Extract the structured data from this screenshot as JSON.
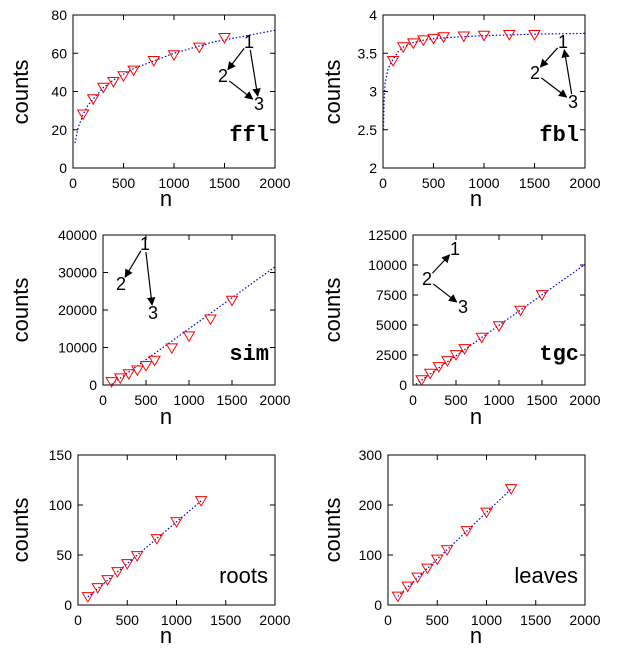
{
  "figure": {
    "background": "#ffffff"
  },
  "style": {
    "marker_color": "#ff0000",
    "fit_color": "#0000cc",
    "axis_color": "#000000"
  },
  "chart_data": [
    {
      "id": "ffl",
      "type": "scatter",
      "panel_label": "ffl",
      "panel_label_font": "mono",
      "xlabel": "n",
      "ylabel": "counts",
      "xlim": [
        0,
        2000
      ],
      "ylim": [
        0,
        80
      ],
      "xticks": [
        0,
        500,
        1000,
        1500,
        2000
      ],
      "yticks": [
        0,
        20,
        40,
        60,
        80
      ],
      "marker": "triangle-down",
      "x": [
        100,
        200,
        300,
        400,
        500,
        600,
        800,
        1000,
        1250,
        1500
      ],
      "y": [
        28,
        36,
        42,
        45,
        48,
        51,
        56,
        59,
        63,
        68
      ],
      "fit": {
        "style": "dotted",
        "x": [
          20,
          50,
          100,
          150,
          200,
          300,
          400,
          500,
          600,
          800,
          1000,
          1200,
          1400,
          1600,
          1800,
          2000
        ],
        "y": [
          13,
          21,
          28,
          33,
          36,
          42,
          46,
          49,
          52,
          56,
          60,
          63,
          66,
          68,
          70,
          72
        ]
      },
      "motif": {
        "labels": [
          "1",
          "2",
          "3"
        ],
        "edges": [
          "1→2",
          "1→3",
          "2→3"
        ]
      }
    },
    {
      "id": "fbl",
      "type": "scatter",
      "panel_label": "fbl",
      "panel_label_font": "mono",
      "xlabel": "n",
      "ylabel": "counts",
      "xlim": [
        0,
        2000
      ],
      "ylim": [
        2,
        4
      ],
      "xticks": [
        0,
        500,
        1000,
        1500,
        2000
      ],
      "yticks": [
        2,
        2.5,
        3,
        3.5,
        4
      ],
      "marker": "triangle-down",
      "x": [
        100,
        200,
        300,
        400,
        500,
        600,
        800,
        1000,
        1250,
        1500
      ],
      "y": [
        3.4,
        3.58,
        3.63,
        3.67,
        3.69,
        3.71,
        3.72,
        3.73,
        3.74,
        3.74
      ],
      "fit": {
        "style": "dotted",
        "x": [
          5,
          10,
          20,
          50,
          100,
          150,
          200,
          300,
          400,
          500,
          700,
          1000,
          1500,
          2000
        ],
        "y": [
          2.5,
          2.85,
          3.1,
          3.3,
          3.42,
          3.52,
          3.58,
          3.64,
          3.67,
          3.69,
          3.71,
          3.73,
          3.75,
          3.76
        ]
      },
      "motif": {
        "labels": [
          "1",
          "2",
          "3"
        ],
        "edges": [
          "1→2",
          "2→3",
          "3→1"
        ]
      }
    },
    {
      "id": "sim",
      "type": "scatter",
      "panel_label": "sim",
      "panel_label_font": "mono",
      "xlabel": "n",
      "ylabel": "counts",
      "xlim": [
        0,
        2000
      ],
      "ylim": [
        0,
        40000
      ],
      "xticks": [
        0,
        500,
        1000,
        1500,
        2000
      ],
      "yticks": [
        0,
        10000,
        20000,
        30000,
        40000
      ],
      "marker": "triangle-down",
      "x": [
        100,
        200,
        300,
        400,
        500,
        600,
        800,
        1000,
        1250,
        1500
      ],
      "y": [
        800,
        1800,
        2900,
        3900,
        5100,
        6500,
        9800,
        13000,
        17500,
        22500
      ],
      "fit": {
        "style": "dotted",
        "x": [
          0,
          2000
        ],
        "y": [
          -1500,
          31500
        ]
      },
      "motif": {
        "labels": [
          "1",
          "2",
          "3"
        ],
        "edges": [
          "1→2",
          "1→3"
        ]
      }
    },
    {
      "id": "tgc",
      "type": "scatter",
      "panel_label": "tgc",
      "panel_label_font": "mono",
      "xlabel": "n",
      "ylabel": "counts",
      "xlim": [
        0,
        2000
      ],
      "ylim": [
        0,
        12500
      ],
      "xticks": [
        0,
        500,
        1000,
        1500,
        2000
      ],
      "yticks": [
        0,
        2500,
        5000,
        7500,
        10000,
        12500
      ],
      "marker": "triangle-down",
      "x": [
        100,
        200,
        300,
        400,
        500,
        600,
        800,
        1000,
        1250,
        1500
      ],
      "y": [
        400,
        950,
        1500,
        2000,
        2500,
        3000,
        3950,
        4900,
        6200,
        7500
      ],
      "fit": {
        "style": "dotted",
        "x": [
          0,
          2000
        ],
        "y": [
          -100,
          10050
        ]
      },
      "motif": {
        "labels": [
          "1",
          "2",
          "3"
        ],
        "edges": [
          "2→1",
          "2→3"
        ]
      }
    },
    {
      "id": "roots",
      "type": "scatter",
      "panel_label": "roots",
      "panel_label_font": "sans",
      "xlabel": "n",
      "ylabel": "counts",
      "xlim": [
        0,
        2000
      ],
      "ylim": [
        0,
        150
      ],
      "xticks": [
        0,
        500,
        1000,
        1500,
        2000
      ],
      "yticks": [
        0,
        50,
        100,
        150
      ],
      "marker": "triangle-down",
      "x": [
        100,
        200,
        300,
        400,
        500,
        600,
        800,
        1000,
        1250
      ],
      "y": [
        8,
        17,
        25,
        33,
        41,
        49,
        66,
        83,
        104
      ],
      "fit": {
        "style": "dotted",
        "x": [
          100,
          1250
        ],
        "y": [
          8,
          104
        ]
      }
    },
    {
      "id": "leaves",
      "type": "scatter",
      "panel_label": "leaves",
      "panel_label_font": "sans",
      "xlabel": "n",
      "ylabel": "counts",
      "xlim": [
        0,
        2000
      ],
      "ylim": [
        0,
        300
      ],
      "xticks": [
        0,
        500,
        1000,
        1500,
        2000
      ],
      "yticks": [
        0,
        100,
        200,
        300
      ],
      "marker": "triangle-down",
      "x": [
        100,
        200,
        300,
        400,
        500,
        600,
        800,
        1000,
        1250
      ],
      "y": [
        17,
        37,
        55,
        73,
        91,
        110,
        148,
        185,
        232
      ],
      "fit": {
        "style": "dotted",
        "x": [
          100,
          1250
        ],
        "y": [
          17,
          232
        ]
      }
    }
  ]
}
